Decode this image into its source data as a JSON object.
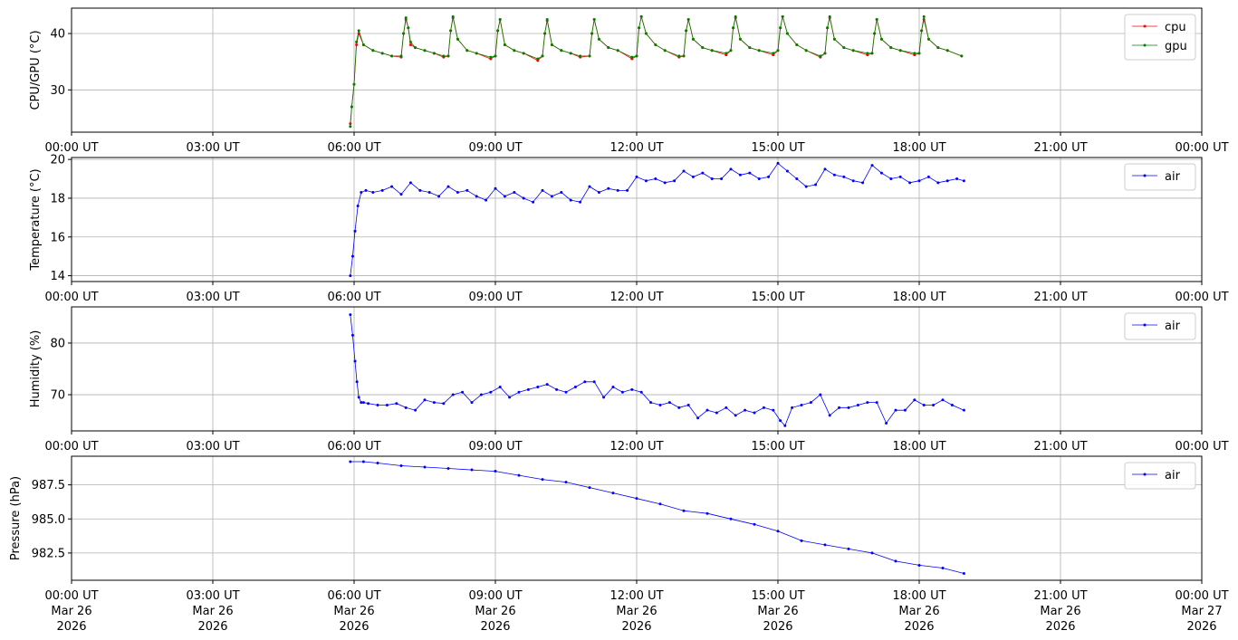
{
  "chart_data": [
    {
      "type": "line",
      "ylabel": "CPU/GPU (°C)",
      "ylim": [
        22.5,
        44.5
      ],
      "yticks": [
        30,
        40
      ],
      "ytick_labels": [
        "30",
        "40"
      ],
      "xlim": [
        0,
        24
      ],
      "xticks": [
        0,
        3,
        6,
        9,
        12,
        15,
        18,
        21,
        24
      ],
      "xtick_labels": [
        "00:00 UT",
        "03:00 UT",
        "06:00 UT",
        "09:00 UT",
        "12:00 UT",
        "15:00 UT",
        "18:00 UT",
        "21:00 UT",
        "00:00 UT"
      ],
      "grid": true,
      "legend_position": "top-right",
      "series": [
        {
          "name": "cpu",
          "color": "#ff0000",
          "x": [
            5.92,
            5.95,
            6.0,
            6.05,
            6.1,
            6.2,
            6.4,
            6.6,
            6.8,
            7.0,
            7.05,
            7.1,
            7.15,
            7.2,
            7.3,
            7.5,
            7.7,
            7.9,
            8.0,
            8.05,
            8.1,
            8.2,
            8.4,
            8.6,
            8.9,
            9.0,
            9.05,
            9.1,
            9.2,
            9.4,
            9.6,
            9.9,
            10.0,
            10.05,
            10.1,
            10.2,
            10.4,
            10.6,
            10.8,
            11.0,
            11.05,
            11.1,
            11.2,
            11.4,
            11.6,
            11.9,
            12.0,
            12.05,
            12.1,
            12.2,
            12.4,
            12.6,
            12.9,
            13.0,
            13.05,
            13.1,
            13.2,
            13.4,
            13.6,
            13.9,
            14.0,
            14.05,
            14.1,
            14.2,
            14.4,
            14.6,
            14.9,
            15.0,
            15.05,
            15.1,
            15.2,
            15.4,
            15.6,
            15.9,
            16.0,
            16.05,
            16.1,
            16.2,
            16.4,
            16.6,
            16.9,
            17.0,
            17.05,
            17.1,
            17.2,
            17.4,
            17.6,
            17.9,
            18.0,
            18.05,
            18.1,
            18.2,
            18.4,
            18.6,
            18.9
          ],
          "values": [
            24,
            27,
            31,
            38,
            40,
            38,
            37,
            36.5,
            36,
            35.8,
            40,
            42.5,
            41,
            38,
            37.5,
            37,
            36.5,
            35.8,
            36,
            40.5,
            42.8,
            39,
            37,
            36.5,
            35.5,
            36,
            40.5,
            42.5,
            38,
            37,
            36.5,
            35.2,
            36,
            40,
            42.3,
            38,
            37,
            36.5,
            35.8,
            36,
            40,
            42.5,
            39,
            37.5,
            37,
            35.5,
            36,
            41,
            43,
            40,
            38,
            37,
            35.8,
            36,
            40.5,
            42.5,
            39,
            37.5,
            37,
            36.2,
            37,
            41,
            42.8,
            39,
            37.5,
            37,
            36.2,
            37,
            41,
            43,
            40,
            38,
            37,
            35.8,
            36.5,
            41,
            42.8,
            39,
            37.5,
            37,
            36.2,
            36.5,
            40,
            42.5,
            39,
            37.5,
            37,
            36.2,
            36.5,
            40.5,
            42.5,
            39,
            37.5,
            37,
            36
          ]
        },
        {
          "name": "gpu",
          "color": "#008000",
          "x": [
            5.92,
            5.95,
            6.0,
            6.05,
            6.1,
            6.2,
            6.4,
            6.6,
            6.8,
            7.0,
            7.05,
            7.1,
            7.15,
            7.2,
            7.3,
            7.5,
            7.7,
            7.9,
            8.0,
            8.05,
            8.1,
            8.2,
            8.4,
            8.6,
            8.9,
            9.0,
            9.05,
            9.1,
            9.2,
            9.4,
            9.6,
            9.9,
            10.0,
            10.05,
            10.1,
            10.2,
            10.4,
            10.6,
            10.8,
            11.0,
            11.05,
            11.1,
            11.2,
            11.4,
            11.6,
            11.9,
            12.0,
            12.05,
            12.1,
            12.2,
            12.4,
            12.6,
            12.9,
            13.0,
            13.05,
            13.1,
            13.2,
            13.4,
            13.6,
            13.9,
            14.0,
            14.05,
            14.1,
            14.2,
            14.4,
            14.6,
            14.9,
            15.0,
            15.05,
            15.1,
            15.2,
            15.4,
            15.6,
            15.9,
            16.0,
            16.05,
            16.1,
            16.2,
            16.4,
            16.6,
            16.9,
            17.0,
            17.05,
            17.1,
            17.2,
            17.4,
            17.6,
            17.9,
            18.0,
            18.05,
            18.1,
            18.2,
            18.4,
            18.6,
            18.9
          ],
          "values": [
            23.5,
            27,
            31,
            38.5,
            40.5,
            38,
            37,
            36.5,
            36,
            36,
            40,
            42.8,
            41,
            38.5,
            37.5,
            37,
            36.5,
            36,
            36,
            40.5,
            43,
            39,
            37,
            36.5,
            35.8,
            36,
            40.5,
            42.5,
            38,
            37,
            36.5,
            35.5,
            36,
            40,
            42.5,
            38,
            37,
            36.5,
            36,
            36,
            40,
            42.5,
            39,
            37.5,
            37,
            35.8,
            36,
            41,
            43,
            40,
            38,
            37,
            36,
            36,
            40.5,
            42.5,
            39,
            37.5,
            37,
            36.5,
            37,
            41,
            43,
            39,
            37.5,
            37,
            36.5,
            37,
            41,
            43,
            40,
            38,
            37,
            36,
            36.5,
            41,
            43,
            39,
            37.5,
            37,
            36.5,
            36.5,
            40,
            42.5,
            39,
            37.5,
            37,
            36.5,
            36.5,
            40.5,
            43,
            39,
            37.5,
            37,
            36
          ]
        }
      ]
    },
    {
      "type": "line",
      "ylabel": "Temperature (°C)",
      "ylim": [
        13.7,
        20.1
      ],
      "yticks": [
        14,
        16,
        18,
        20
      ],
      "ytick_labels": [
        "14",
        "16",
        "18",
        "20"
      ],
      "xlim": [
        0,
        24
      ],
      "xticks": [
        0,
        3,
        6,
        9,
        12,
        15,
        18,
        21,
        24
      ],
      "xtick_labels": [
        "00:00 UT",
        "03:00 UT",
        "06:00 UT",
        "09:00 UT",
        "12:00 UT",
        "15:00 UT",
        "18:00 UT",
        "21:00 UT",
        "00:00 UT"
      ],
      "grid": true,
      "legend_position": "top-right",
      "series": [
        {
          "name": "air",
          "color": "#0000ff",
          "x": [
            5.92,
            5.97,
            6.02,
            6.08,
            6.15,
            6.25,
            6.4,
            6.6,
            6.8,
            7.0,
            7.2,
            7.4,
            7.6,
            7.8,
            8.0,
            8.2,
            8.4,
            8.6,
            8.8,
            9.0,
            9.2,
            9.4,
            9.6,
            9.8,
            10.0,
            10.2,
            10.4,
            10.6,
            10.8,
            11.0,
            11.2,
            11.4,
            11.6,
            11.8,
            12.0,
            12.2,
            12.4,
            12.6,
            12.8,
            13.0,
            13.2,
            13.4,
            13.6,
            13.8,
            14.0,
            14.2,
            14.4,
            14.6,
            14.8,
            15.0,
            15.2,
            15.4,
            15.6,
            15.8,
            16.0,
            16.2,
            16.4,
            16.6,
            16.8,
            17.0,
            17.2,
            17.4,
            17.6,
            17.8,
            18.0,
            18.2,
            18.4,
            18.6,
            18.8,
            18.95
          ],
          "values": [
            14.0,
            15.0,
            16.3,
            17.6,
            18.3,
            18.4,
            18.3,
            18.4,
            18.6,
            18.2,
            18.8,
            18.4,
            18.3,
            18.1,
            18.6,
            18.3,
            18.4,
            18.1,
            17.9,
            18.5,
            18.1,
            18.3,
            18.0,
            17.8,
            18.4,
            18.1,
            18.3,
            17.9,
            17.8,
            18.6,
            18.3,
            18.5,
            18.4,
            18.4,
            19.1,
            18.9,
            19.0,
            18.8,
            18.9,
            19.4,
            19.1,
            19.3,
            19.0,
            19.0,
            19.5,
            19.2,
            19.3,
            19.0,
            19.1,
            19.8,
            19.4,
            19.0,
            18.6,
            18.7,
            19.5,
            19.2,
            19.1,
            18.9,
            18.8,
            19.7,
            19.3,
            19.0,
            19.1,
            18.8,
            18.9,
            19.1,
            18.8,
            18.9,
            19.0,
            18.9
          ]
        }
      ]
    },
    {
      "type": "line",
      "ylabel": "Humidity (%)",
      "ylim": [
        63,
        87
      ],
      "yticks": [
        70,
        80
      ],
      "ytick_labels": [
        "70",
        "80"
      ],
      "xlim": [
        0,
        24
      ],
      "xticks": [
        0,
        3,
        6,
        9,
        12,
        15,
        18,
        21,
        24
      ],
      "xtick_labels": [
        "00:00 UT",
        "03:00 UT",
        "06:00 UT",
        "09:00 UT",
        "12:00 UT",
        "15:00 UT",
        "18:00 UT",
        "21:00 UT",
        "00:00 UT"
      ],
      "grid": true,
      "legend_position": "top-right",
      "series": [
        {
          "name": "air",
          "color": "#0000ff",
          "x": [
            5.92,
            5.97,
            6.02,
            6.06,
            6.1,
            6.15,
            6.2,
            6.3,
            6.5,
            6.7,
            6.9,
            7.1,
            7.3,
            7.5,
            7.7,
            7.9,
            8.1,
            8.3,
            8.5,
            8.7,
            8.9,
            9.1,
            9.3,
            9.5,
            9.7,
            9.9,
            10.1,
            10.3,
            10.5,
            10.7,
            10.9,
            11.1,
            11.3,
            11.5,
            11.7,
            11.9,
            12.1,
            12.3,
            12.5,
            12.7,
            12.9,
            13.1,
            13.3,
            13.5,
            13.7,
            13.9,
            14.1,
            14.3,
            14.5,
            14.7,
            14.9,
            15.05,
            15.15,
            15.3,
            15.5,
            15.7,
            15.9,
            16.1,
            16.3,
            16.5,
            16.7,
            16.9,
            17.1,
            17.3,
            17.5,
            17.7,
            17.9,
            18.1,
            18.3,
            18.5,
            18.7,
            18.95
          ],
          "values": [
            85.5,
            81.5,
            76.5,
            72.5,
            69.5,
            68.5,
            68.5,
            68.3,
            68.0,
            68.0,
            68.3,
            67.5,
            67.0,
            69.0,
            68.5,
            68.3,
            70.0,
            70.5,
            68.5,
            70.0,
            70.5,
            71.5,
            69.5,
            70.5,
            71.0,
            71.5,
            72.0,
            71.0,
            70.5,
            71.5,
            72.5,
            72.5,
            69.5,
            71.5,
            70.5,
            71.0,
            70.5,
            68.5,
            68.0,
            68.5,
            67.5,
            68.0,
            65.5,
            67.0,
            66.5,
            67.5,
            66.0,
            67.0,
            66.5,
            67.5,
            67.0,
            65.0,
            64.0,
            67.5,
            68.0,
            68.5,
            70.0,
            66.0,
            67.5,
            67.5,
            68.0,
            68.5,
            68.5,
            64.5,
            67.0,
            67.0,
            69.0,
            68.0,
            68.0,
            69.0,
            68.0,
            67.0
          ]
        }
      ]
    },
    {
      "type": "line",
      "ylabel": "Pressure (hPa)",
      "ylim": [
        980.5,
        989.6
      ],
      "yticks": [
        982.5,
        985.0,
        987.5
      ],
      "ytick_labels": [
        "982.5",
        "985.0",
        "987.5"
      ],
      "xlim": [
        0,
        24
      ],
      "xticks": [
        0,
        3,
        6,
        9,
        12,
        15,
        18,
        21,
        24
      ],
      "xtick_labels": [
        "00:00 UT\nMar 26\n2026",
        "03:00 UT\nMar 26\n2026",
        "06:00 UT\nMar 26\n2026",
        "09:00 UT\nMar 26\n2026",
        "12:00 UT\nMar 26\n2026",
        "15:00 UT\nMar 26\n2026",
        "18:00 UT\nMar 26\n2026",
        "21:00 UT\nMar 26\n2026",
        "00:00 UT\nMar 27\n2026"
      ],
      "grid": true,
      "legend_position": "top-right",
      "series": [
        {
          "name": "air",
          "color": "#0000ff",
          "x": [
            5.92,
            6.2,
            6.5,
            7.0,
            7.5,
            8.0,
            8.5,
            9.0,
            9.5,
            10.0,
            10.5,
            11.0,
            11.5,
            12.0,
            12.5,
            13.0,
            13.5,
            14.0,
            14.5,
            15.0,
            15.5,
            16.0,
            16.5,
            17.0,
            17.5,
            18.0,
            18.5,
            18.95
          ],
          "values": [
            989.2,
            989.2,
            989.1,
            988.9,
            988.8,
            988.7,
            988.6,
            988.5,
            988.2,
            987.9,
            987.7,
            987.3,
            986.9,
            986.5,
            986.1,
            985.6,
            985.4,
            985.0,
            984.6,
            984.1,
            983.4,
            983.1,
            982.8,
            982.5,
            981.9,
            981.6,
            981.4,
            981.0
          ]
        }
      ]
    }
  ]
}
